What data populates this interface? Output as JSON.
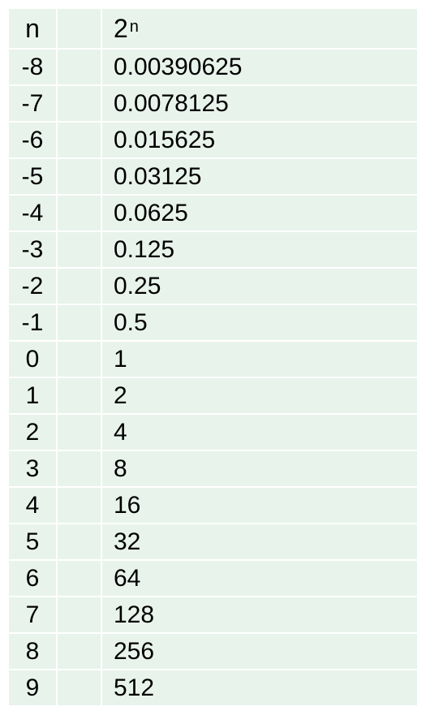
{
  "table": {
    "header": {
      "n": "n",
      "base": "2",
      "exponent": "n"
    },
    "rows": [
      {
        "n": "-8",
        "value": "0.00390625"
      },
      {
        "n": "-7",
        "value": "0.0078125"
      },
      {
        "n": "-6",
        "value": "0.015625"
      },
      {
        "n": "-5",
        "value": "0.03125"
      },
      {
        "n": "-4",
        "value": "0.0625"
      },
      {
        "n": "-3",
        "value": "0.125"
      },
      {
        "n": "-2",
        "value": "0.25"
      },
      {
        "n": "-1",
        "value": "0.5"
      },
      {
        "n": "0",
        "value": "1"
      },
      {
        "n": "1",
        "value": "2"
      },
      {
        "n": "2",
        "value": "4"
      },
      {
        "n": "3",
        "value": "8"
      },
      {
        "n": "4",
        "value": "16"
      },
      {
        "n": "5",
        "value": "32"
      },
      {
        "n": "6",
        "value": "64"
      },
      {
        "n": "7",
        "value": "128"
      },
      {
        "n": "8",
        "value": "256"
      },
      {
        "n": "9",
        "value": "512"
      }
    ]
  },
  "colors": {
    "cell_background": "#e8f3ec",
    "grid_lines": "#ffffff",
    "text": "#000000"
  }
}
